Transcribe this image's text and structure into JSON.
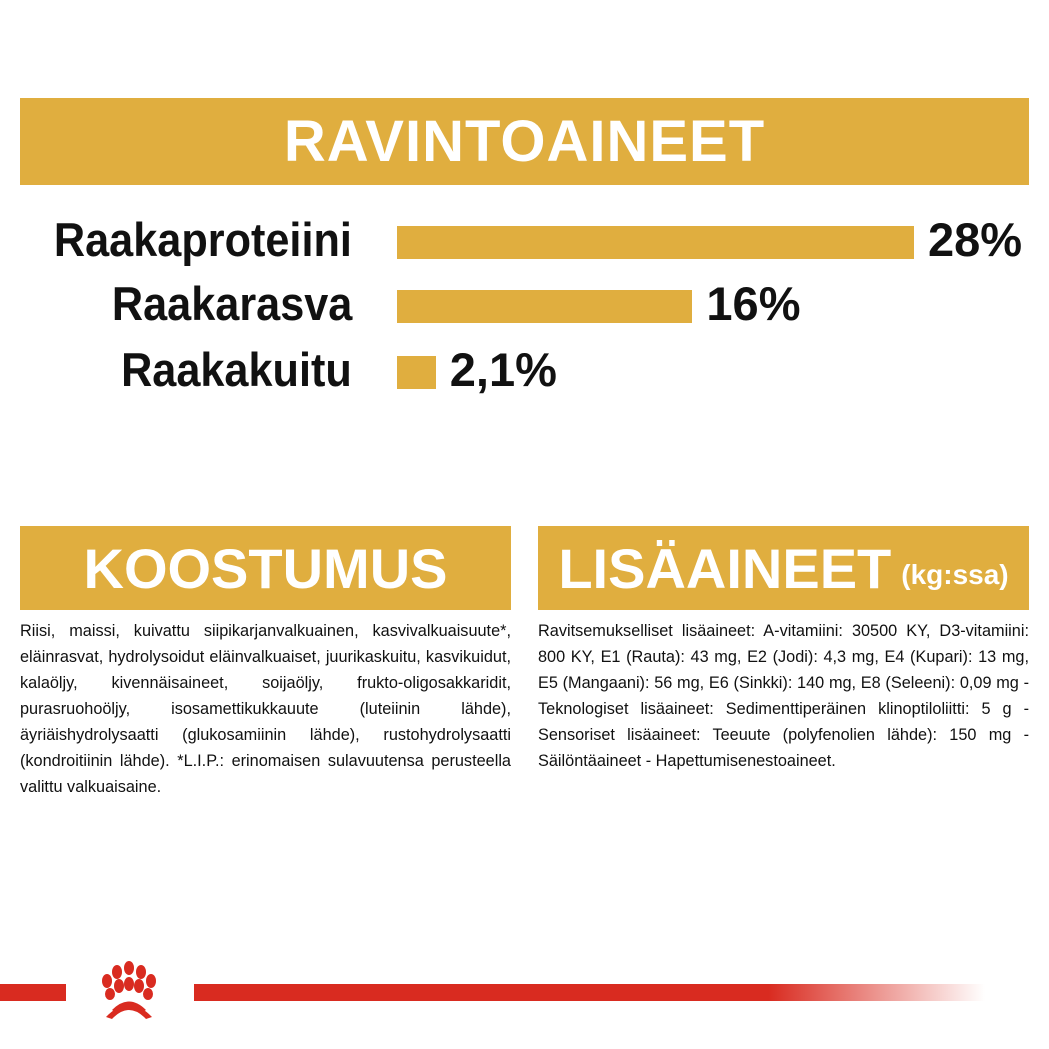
{
  "header": {
    "title": "RAVINTOAINEET"
  },
  "chart_data": {
    "type": "bar",
    "orientation": "horizontal",
    "categories": [
      "Raakaproteiini",
      "Raakarasva",
      "Raakakuitu"
    ],
    "values": [
      28,
      16,
      2.1
    ],
    "value_labels": [
      "28%",
      "16%",
      "2,1%"
    ],
    "unit": "%",
    "bar_color": "#E0AE3F"
  },
  "composition": {
    "title": "KOOSTUMUS",
    "text": "Riisi, maissi, kuivattu siipikarjanvalkuainen, kasvivalkuaisuute*, eläinrasvat, hydrolysoidut eläinvalkuaiset, juurikaskuitu, kasvikuidut, kalaöljy, kivennäisaineet, soijaöljy, frukto-oligosakkaridit, purasruohoöljy, isosamettikukkauute (luteiinin lähde), äyriäishydrolysaatti (glukosamiinin lähde), rustohydrolysaatti (kondroitiinin lähde). *L.I.P.: erinomaisen sulavuutensa perusteella valittu valkuaisaine."
  },
  "additives": {
    "title": "LISÄAINEET",
    "unit": "(kg:ssa)",
    "text": "Ravitsemukselliset lisäaineet: A-vitamiini: 30500 KY, D3-vitamiini: 800 KY, E1 (Rauta): 43 mg, E2 (Jodi): 4,3 mg, E4 (Kupari): 13 mg, E5 (Mangaani): 56 mg, E6 (Sinkki): 140 mg, E8 (Seleeni): 0,09 mg - Teknologiset lisäaineet: Sedimenttiperäinen klinoptiloliitti: 5 g - Sensoriset lisäaineet: Teeuute (polyfenolien lähde): 150 mg - Säilöntäaineet - Hapettumisenestoaineet."
  },
  "colors": {
    "accent": "#E0AE3F",
    "brand_red": "#D92B20"
  },
  "footer": {
    "logo": "crown-paw-logo-icon"
  }
}
